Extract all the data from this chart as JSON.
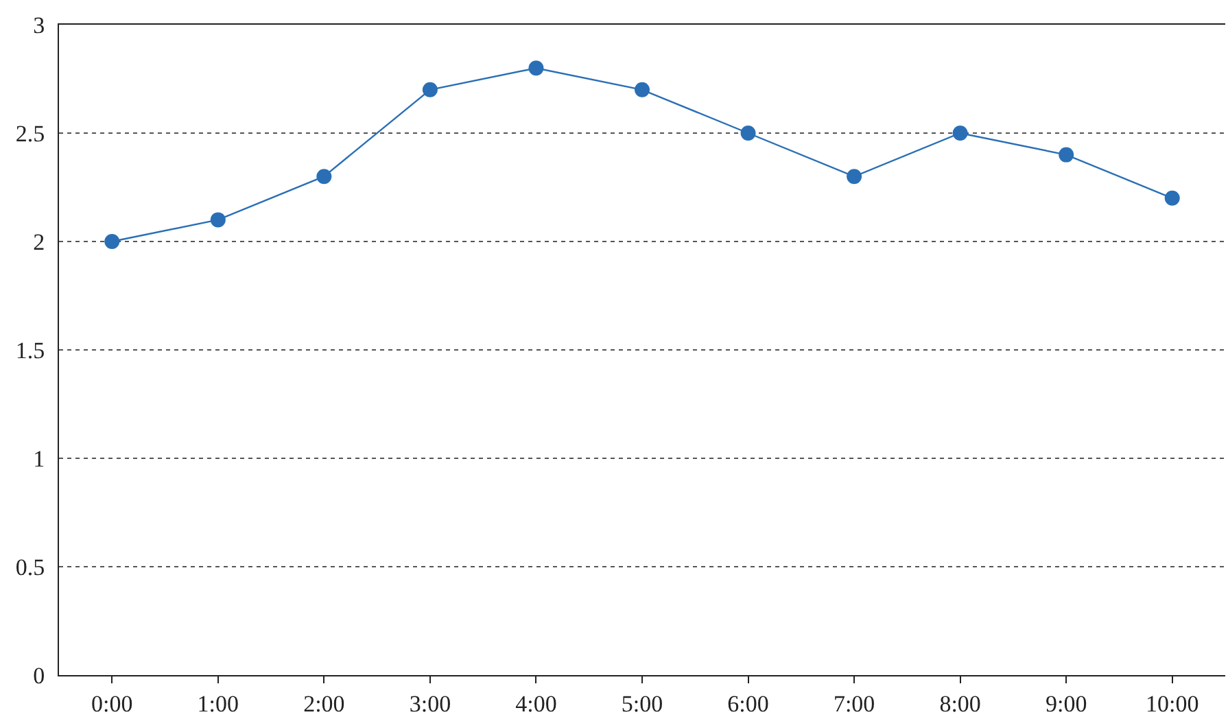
{
  "chart_data": {
    "type": "line",
    "categories": [
      "0:00",
      "1:00",
      "2:00",
      "3:00",
      "4:00",
      "5:00",
      "6:00",
      "7:00",
      "8:00",
      "9:00",
      "10:00"
    ],
    "series": [
      {
        "color": "#2a6fb5",
        "values": [
          2,
          2.1,
          2.3,
          2.7,
          2.8,
          2.7,
          2.5,
          2.3,
          2.5,
          2.4,
          2.2
        ]
      }
    ],
    "ylim": [
      0,
      3
    ],
    "yticks": [
      0,
      0.5,
      1,
      1.5,
      2,
      2.5,
      3
    ],
    "grid": "y",
    "marker": "circle",
    "line_style": "solid"
  }
}
